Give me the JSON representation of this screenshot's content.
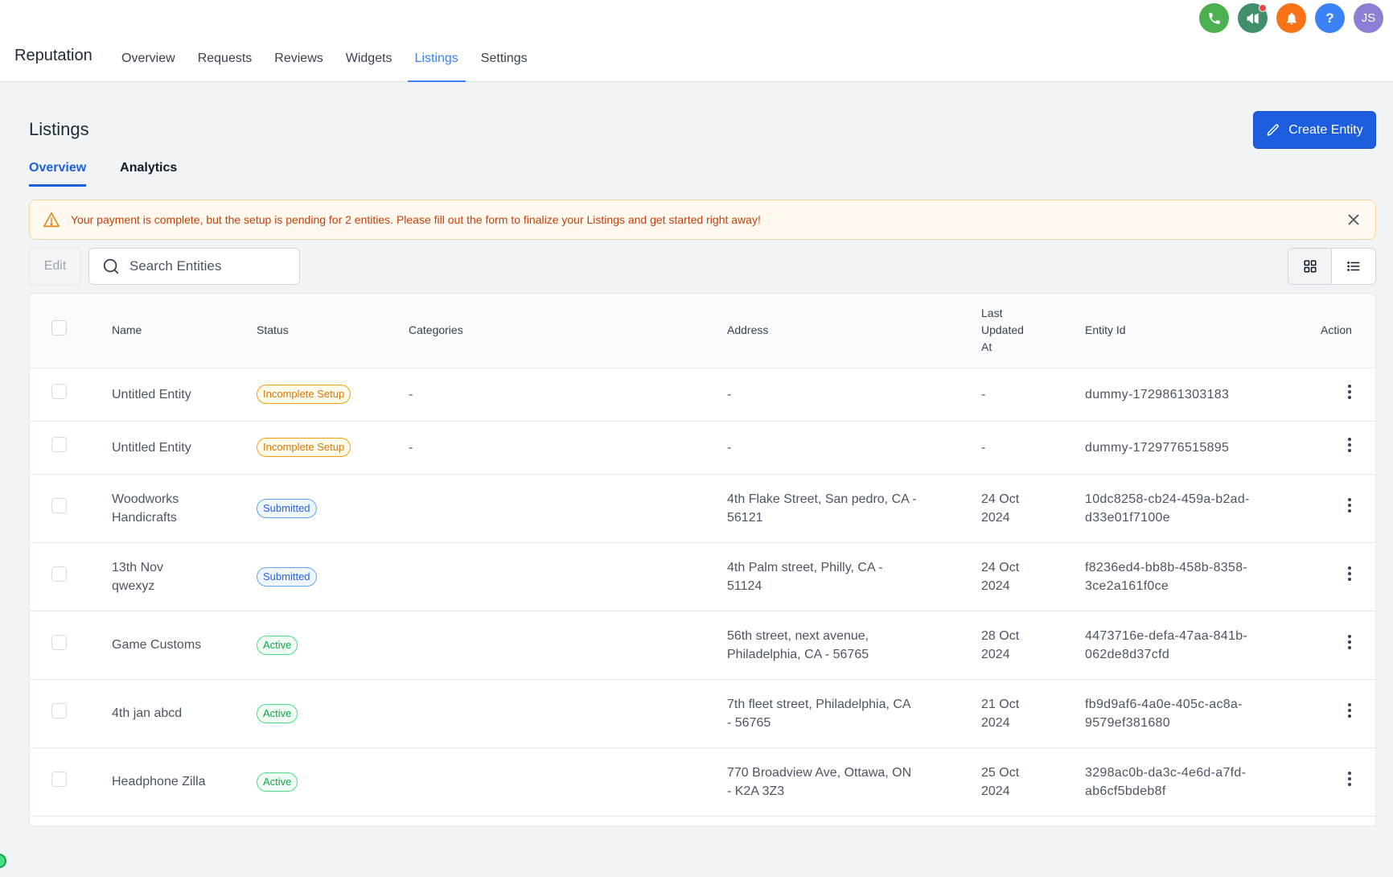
{
  "header": {
    "brand": "Reputation",
    "nav": [
      "Overview",
      "Requests",
      "Reviews",
      "Widgets",
      "Listings",
      "Settings"
    ],
    "active_nav": "Listings",
    "icons": [
      {
        "name": "phone-icon",
        "color": "#4caf50"
      },
      {
        "name": "megaphone-icon",
        "color": "#3f8f6a"
      },
      {
        "name": "bell-icon",
        "color": "#f97316"
      },
      {
        "name": "help-icon",
        "color": "#3b82f6"
      }
    ],
    "avatar": {
      "initials": "JS",
      "color": "#8b7fd6"
    }
  },
  "page": {
    "title": "Listings",
    "create_button": "Create Entity",
    "tabs": [
      "Overview",
      "Analytics"
    ],
    "active_tab": "Overview"
  },
  "alert": {
    "message": "Your payment is complete, but the setup is pending for 2 entities. Please fill out the form to finalize your Listings and get started right away!"
  },
  "toolbar": {
    "edit_label": "Edit",
    "search_placeholder": "Search Entities"
  },
  "table": {
    "columns": {
      "name": "Name",
      "status": "Status",
      "categories": "Categories",
      "address": "Address",
      "last_updated_l1": "Last",
      "last_updated_l2": "Updated",
      "last_updated_l3": "At",
      "entity_id": "Entity Id",
      "action": "Action"
    },
    "rows": [
      {
        "name_l1": "Untitled Entity",
        "name_l2": "",
        "status": "Incomplete Setup",
        "status_type": "incomplete",
        "categories": "-",
        "address_l1": "-",
        "address_l2": "",
        "updated_l1": "-",
        "updated_l2": "",
        "id_l1": "dummy-1729861303183",
        "id_l2": ""
      },
      {
        "name_l1": "Untitled Entity",
        "name_l2": "",
        "status": "Incomplete Setup",
        "status_type": "incomplete",
        "categories": "-",
        "address_l1": "-",
        "address_l2": "",
        "updated_l1": "-",
        "updated_l2": "",
        "id_l1": "dummy-1729776515895",
        "id_l2": ""
      },
      {
        "name_l1": "Woodworks",
        "name_l2": "Handicrafts",
        "status": "Submitted",
        "status_type": "submitted",
        "categories": "",
        "address_l1": "4th Flake Street, San pedro, CA -",
        "address_l2": "56121",
        "updated_l1": "24 Oct",
        "updated_l2": "2024",
        "id_l1": "10dc8258-cb24-459a-b2ad-",
        "id_l2": "d33e01f7100e"
      },
      {
        "name_l1": "13th Nov",
        "name_l2": "qwexyz",
        "status": "Submitted",
        "status_type": "submitted",
        "categories": "",
        "address_l1": "4th Palm street, Philly, CA -",
        "address_l2": "51124",
        "updated_l1": "24 Oct",
        "updated_l2": "2024",
        "id_l1": "f8236ed4-bb8b-458b-8358-",
        "id_l2": "3ce2a161f0ce"
      },
      {
        "name_l1": "Game Customs",
        "name_l2": "",
        "status": "Active",
        "status_type": "active",
        "categories": "",
        "address_l1": "56th street, next avenue,",
        "address_l2": "Philadelphia, CA - 56765",
        "updated_l1": "28 Oct",
        "updated_l2": "2024",
        "id_l1": "4473716e-defa-47aa-841b-",
        "id_l2": "062de8d37cfd"
      },
      {
        "name_l1": "4th jan abcd",
        "name_l2": "",
        "status": "Active",
        "status_type": "active",
        "categories": "",
        "address_l1": "7th fleet street, Philadelphia, CA",
        "address_l2": "- 56765",
        "updated_l1": "21 Oct",
        "updated_l2": "2024",
        "id_l1": "fb9d9af6-4a0e-405c-ac8a-",
        "id_l2": "9579ef381680"
      },
      {
        "name_l1": "Headphone Zilla",
        "name_l2": "",
        "status": "Active",
        "status_type": "active",
        "categories": "",
        "address_l1": "770 Broadview Ave, Ottawa, ON",
        "address_l2": "- K2A 3Z3",
        "updated_l1": "25 Oct",
        "updated_l2": "2024",
        "id_l1": "3298ac0b-da3c-4e6d-a7fd-",
        "id_l2": "ab6cf5bdeb8f"
      }
    ]
  }
}
